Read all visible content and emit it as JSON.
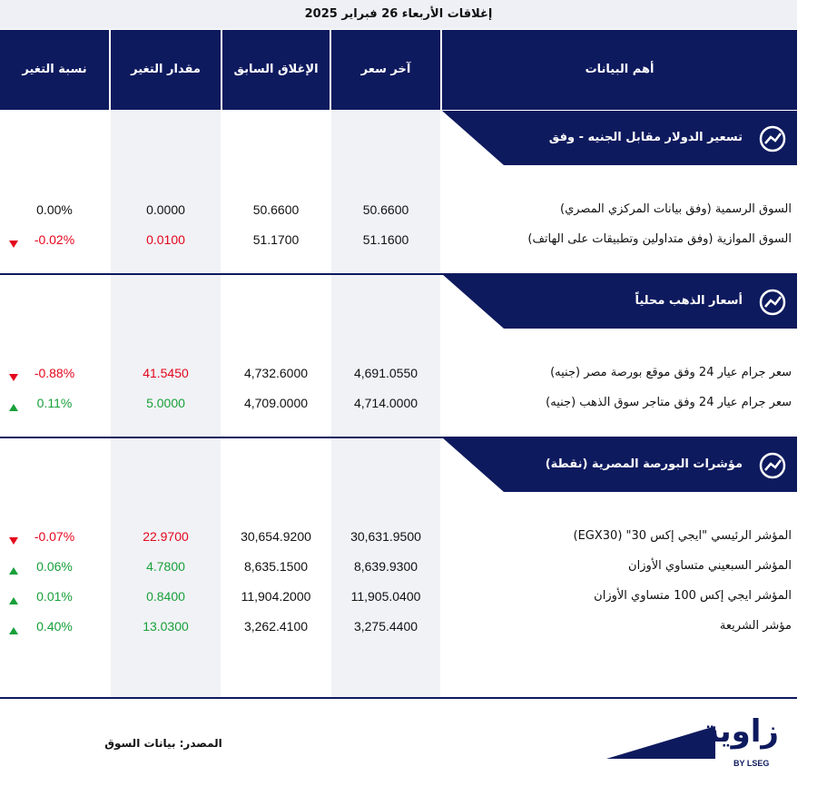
{
  "header": {
    "title": "إغلاقات الأربعاء 26 فبراير 2025"
  },
  "table": {
    "columns": [
      "أهم البيانات",
      "آخر سعر",
      "الإغلاق السابق",
      "مقدار التغير",
      "نسبة التغير"
    ],
    "sections": [
      {
        "title": "تسعير  الدولار مقابل الجنيه - وفق",
        "rows": [
          {
            "name": "السوق الرسمية (وفق بيانات المركزي المصري)",
            "last": "50.6600",
            "previous": "50.6600",
            "change": "0.0000",
            "change_pct": "0.00%"
          },
          {
            "name": "السوق الموازية (وفق متداولين وتطبيقات على الهاتف)",
            "last": "51.1600",
            "previous": "51.1700",
            "change": "0.0100",
            "change_pct": "-0.02%",
            "trend": "down"
          }
        ]
      },
      {
        "title": "أسعار الذهب محلياً",
        "rows": [
          {
            "name": "سعر جرام عيار 24 وفق موقع بورصة مصر (جنيه)",
            "last": "4,691.0550",
            "previous": "4,732.6000",
            "change": "41.5450",
            "change_pct": "-0.88%",
            "trend": "down"
          },
          {
            "name": "سعر جرام عيار 24 وفق متاجر سوق الذهب (جنيه)",
            "last": "4,714.0000",
            "previous": "4,709.0000",
            "change": "5.0000",
            "change_pct": "0.11%",
            "trend": "up"
          }
        ]
      },
      {
        "title": "مؤشرات البورصة المصرية (نقطة)",
        "rows": [
          {
            "name": "المؤشر الرئيسي \"ايجي إكس 30\" (EGX30)",
            "last": "30,631.9500",
            "previous": "30,654.9200",
            "change": "22.9700",
            "change_pct": "-0.07%",
            "trend": "down"
          },
          {
            "name": "المؤشر السبعيني متساوي الأوزان",
            "last": "8,639.9300",
            "previous": "8,635.1500",
            "change": "4.7800",
            "change_pct": "0.06%",
            "trend": "up"
          },
          {
            "name": "المؤشر ايجي إكس 100 متساوي الأوزان",
            "last": "11,905.0400",
            "previous": "11,904.2000",
            "change": "0.8400",
            "change_pct": "0.01%",
            "trend": "up"
          },
          {
            "name": "مؤشر الشريعة",
            "last": "3,275.4400",
            "previous": "3,262.4100",
            "change": "13.0300",
            "change_pct": "0.40%",
            "trend": "up"
          }
        ]
      }
    ]
  },
  "footer": {
    "source": "المصدر: بيانات السوق",
    "logo": "زاوية",
    "logo_sub": "BY LSEG"
  }
}
